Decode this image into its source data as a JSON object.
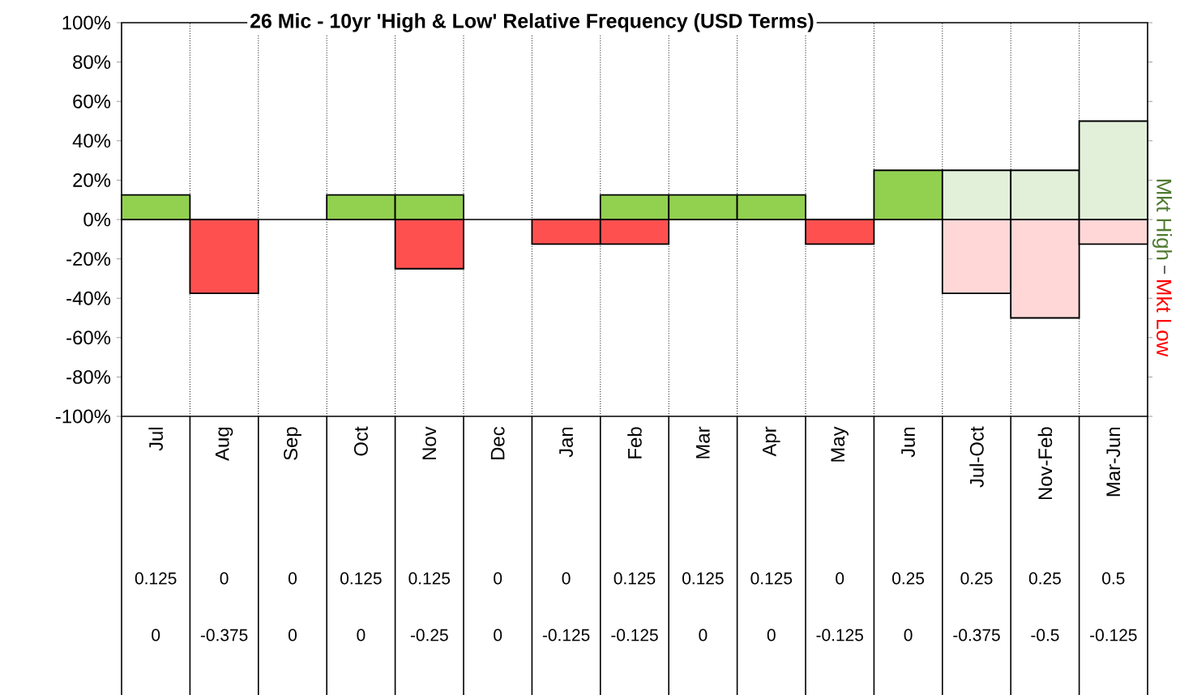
{
  "chart_data": {
    "type": "bar",
    "title": "26 Mic - 10yr 'High & Low' Relative Frequency (USD Terms)",
    "categories": [
      "Jul",
      "Aug",
      "Sep",
      "Oct",
      "Nov",
      "Dec",
      "Jan",
      "Feb",
      "Mar",
      "Apr",
      "May",
      "Jun",
      "Jul-Oct",
      "Nov-Feb",
      "Mar-Jun"
    ],
    "series": [
      {
        "name": "Mkt High",
        "color": "#4f7a2f",
        "colors": [
          "#92d050",
          "#92d050",
          "#92d050",
          "#92d050",
          "#92d050",
          "#92d050",
          "#92d050",
          "#92d050",
          "#92d050",
          "#92d050",
          "#92d050",
          "#92d050",
          "#e2f0d9",
          "#e2f0d9",
          "#e2f0d9"
        ],
        "values": [
          0.125,
          0,
          0,
          0.125,
          0.125,
          0,
          0,
          0.125,
          0.125,
          0.125,
          0,
          0.25,
          0.25,
          0.25,
          0.5
        ]
      },
      {
        "name": "Mkt Low",
        "color": "#ff0000",
        "colors": [
          "#ff5050",
          "#ff5050",
          "#ff5050",
          "#ff5050",
          "#ff5050",
          "#ff5050",
          "#ff5050",
          "#ff5050",
          "#ff5050",
          "#ff5050",
          "#ff5050",
          "#ff5050",
          "#ffd7d7",
          "#ffd7d7",
          "#ffd7d7"
        ],
        "values": [
          0,
          -0.375,
          0,
          0,
          -0.25,
          0,
          -0.125,
          -0.125,
          0,
          0,
          -0.125,
          0,
          -0.375,
          -0.5,
          -0.125
        ]
      }
    ],
    "ylim": [
      -1,
      1
    ],
    "yticks": [
      {
        "value": -1,
        "label": "-100%"
      },
      {
        "value": -0.8,
        "label": "-80%"
      },
      {
        "value": -0.6,
        "label": "-60%"
      },
      {
        "value": -0.4,
        "label": "-40%"
      },
      {
        "value": -0.2,
        "label": "-20%"
      },
      {
        "value": 0,
        "label": "0%"
      },
      {
        "value": 0.2,
        "label": "20%"
      },
      {
        "value": 0.4,
        "label": "40%"
      },
      {
        "value": 0.6,
        "label": "60%"
      },
      {
        "value": 0.8,
        "label": "80%"
      },
      {
        "value": 1,
        "label": "100%"
      }
    ],
    "grid": "x",
    "legend": "right",
    "data_labels": true
  }
}
